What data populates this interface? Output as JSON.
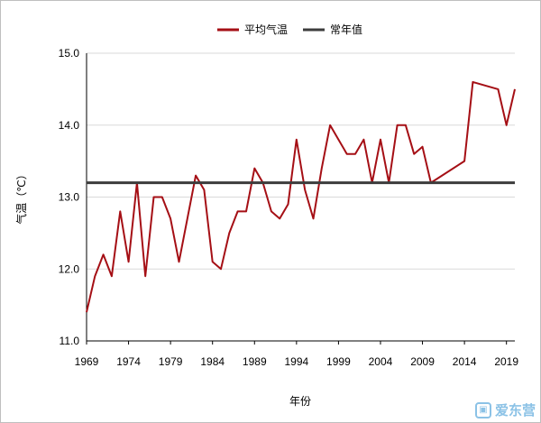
{
  "chart_data": {
    "type": "line",
    "title": "",
    "xlabel": "年份",
    "ylabel": "气温（℃）",
    "ylim": [
      11.0,
      15.0
    ],
    "yticks": [
      "11.0",
      "12.0",
      "13.0",
      "14.0",
      "15.0"
    ],
    "xticks": [
      "1969",
      "1974",
      "1979",
      "1984",
      "1989",
      "1994",
      "1999",
      "2004",
      "2009",
      "2014",
      "2019"
    ],
    "grid": "horizontal",
    "legend_position": "top-center",
    "series": [
      {
        "name": "平均气温",
        "color": "#a50f15",
        "x": [
          1969,
          1970,
          1971,
          1972,
          1973,
          1974,
          1975,
          1976,
          1977,
          1978,
          1979,
          1980,
          1981,
          1982,
          1983,
          1984,
          1985,
          1986,
          1987,
          1988,
          1989,
          1990,
          1991,
          1992,
          1993,
          1994,
          1995,
          1996,
          1997,
          1998,
          1999,
          2000,
          2001,
          2002,
          2003,
          2004,
          2005,
          2006,
          2007,
          2008,
          2009,
          2010,
          2014,
          2015,
          2018,
          2019,
          2020
        ],
        "values": [
          11.4,
          11.9,
          12.2,
          11.9,
          12.8,
          12.1,
          13.2,
          11.9,
          13.0,
          13.0,
          12.7,
          12.1,
          12.7,
          13.3,
          13.1,
          12.1,
          12.0,
          12.5,
          12.8,
          12.8,
          13.4,
          13.2,
          12.8,
          12.7,
          12.9,
          13.8,
          13.1,
          12.7,
          13.4,
          14.0,
          13.8,
          13.6,
          13.6,
          13.8,
          13.2,
          13.8,
          13.2,
          14.0,
          14.0,
          13.6,
          13.7,
          13.2,
          13.5,
          14.6,
          14.5,
          14.0,
          14.5
        ]
      },
      {
        "name": "常年值",
        "color": "#3c3c3c",
        "x": [
          1969,
          2020
        ],
        "values": [
          13.2,
          13.2
        ]
      }
    ]
  },
  "watermark": {
    "logo_glyph": "▣",
    "text": "爱东营"
  }
}
